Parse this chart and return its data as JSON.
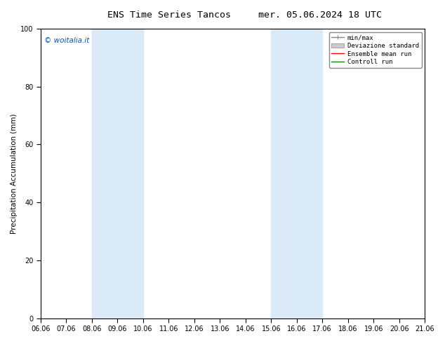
{
  "title_left": "ENS Time Series Tancos",
  "title_right": "mer. 05.06.2024 18 UTC",
  "ylabel": "Precipitation Accumulation (mm)",
  "ylim": [
    0,
    100
  ],
  "xtick_labels": [
    "06.06",
    "07.06",
    "08.06",
    "09.06",
    "10.06",
    "11.06",
    "12.06",
    "13.06",
    "14.06",
    "15.06",
    "16.06",
    "17.06",
    "18.06",
    "19.06",
    "20.06",
    "21.06"
  ],
  "shaded_bands": [
    {
      "xmin": 2,
      "xmax": 4
    },
    {
      "xmin": 9,
      "xmax": 11
    }
  ],
  "shade_color": "#daeaf7",
  "background_color": "#ffffff",
  "watermark_text": "© woitalia.it",
  "watermark_color": "#0055cc",
  "legend_entries": [
    {
      "label": "min/max",
      "color": "#888888",
      "lw": 1.0
    },
    {
      "label": "Deviazione standard",
      "color": "#bbbbbb",
      "lw": 4.0
    },
    {
      "label": "Ensemble mean run",
      "color": "#ff0000",
      "lw": 1.0
    },
    {
      "label": "Controll run",
      "color": "#008800",
      "lw": 1.0
    }
  ],
  "tick_color": "#000000",
  "spine_color": "#000000",
  "title_fontsize": 9.5,
  "tick_fontsize": 7,
  "ylabel_fontsize": 7.5,
  "legend_fontsize": 6.5
}
